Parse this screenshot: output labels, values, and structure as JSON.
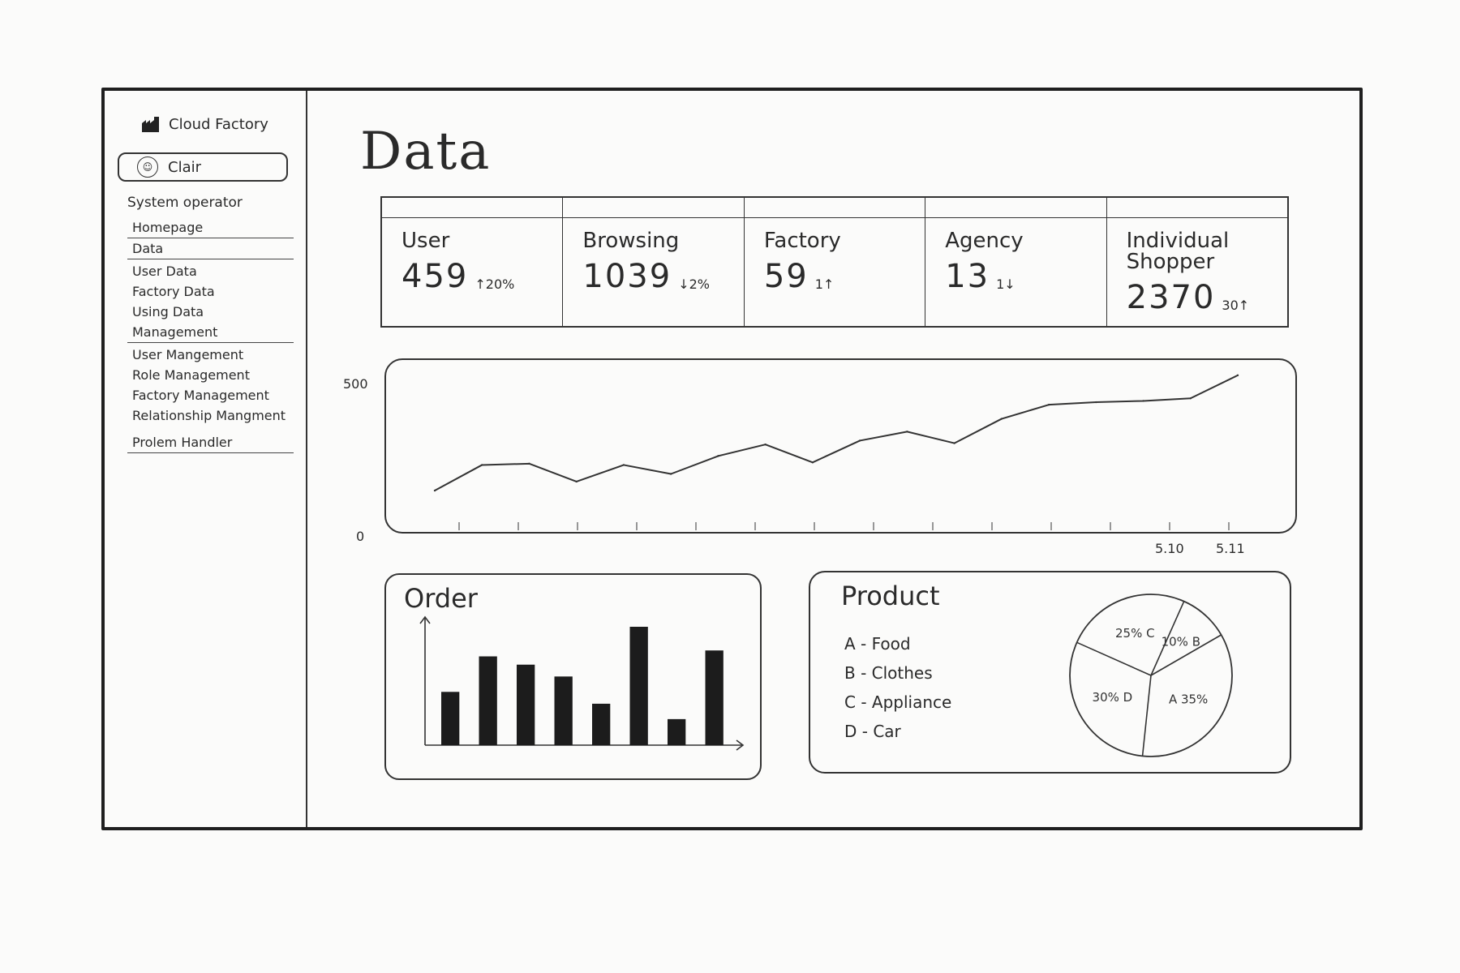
{
  "app": {
    "brand": "Cloud Factory",
    "user_name": "Clair",
    "role": "System operator"
  },
  "nav": {
    "homepage": "Homepage",
    "data": "Data",
    "user_data": "User Data",
    "factory_data": "Factory Data",
    "using_data": "Using Data",
    "management": "Management",
    "user_management": "User Mangement",
    "role_management": "Role Management",
    "factory_management": "Factory Management",
    "relationship_management": "Relationship Mangment",
    "problem_handler": "Prolem Handler"
  },
  "page": {
    "title": "Data"
  },
  "kpis": [
    {
      "label": "User",
      "value": "459",
      "delta": "↑20%"
    },
    {
      "label": "Browsing",
      "value": "1039",
      "delta": "↓2%"
    },
    {
      "label": "Factory",
      "value": "59",
      "delta": "1↑"
    },
    {
      "label": "Agency",
      "value": "13",
      "delta": "1↓"
    },
    {
      "label": "Individual Shopper",
      "value": "2370",
      "delta": "30↑"
    }
  ],
  "chart_data": [
    {
      "type": "line",
      "ylim": [
        0,
        500
      ],
      "y_tick_labels": [
        "500",
        "0"
      ],
      "x_tick_labels": [
        "5.10",
        "5.11"
      ],
      "values": [
        60,
        160,
        165,
        95,
        160,
        125,
        195,
        240,
        170,
        255,
        290,
        245,
        340,
        395,
        405,
        410,
        420,
        510
      ]
    },
    {
      "type": "bar",
      "title": "Order",
      "values": [
        45,
        75,
        68,
        58,
        35,
        100,
        22,
        80
      ]
    },
    {
      "type": "pie",
      "title": "Product",
      "legend": [
        "A - Food",
        "B - Clothes",
        "C - Appliance",
        "D - Car"
      ],
      "slices": [
        {
          "key": "A",
          "value": 35,
          "label": "A 35%"
        },
        {
          "key": "B",
          "value": 10,
          "label": "10% B"
        },
        {
          "key": "C",
          "value": 25,
          "label": "25% C"
        },
        {
          "key": "D",
          "value": 30,
          "label": "30% D"
        }
      ]
    }
  ]
}
